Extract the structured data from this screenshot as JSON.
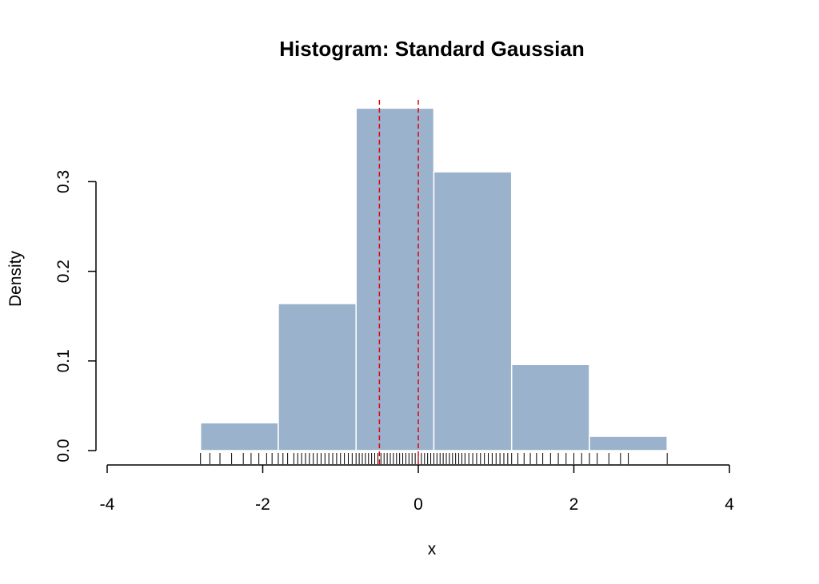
{
  "chart_data": {
    "type": "bar",
    "title": "Histogram: Standard Gaussian",
    "xlabel": "x",
    "ylabel": "Density",
    "xlim": [
      -4,
      4
    ],
    "ylim": [
      0,
      0.3
    ],
    "x_ticks": [
      -4,
      -2,
      0,
      2,
      4
    ],
    "x_tick_labels": [
      "-4",
      "-2",
      "0",
      "2",
      "4"
    ],
    "y_ticks": [
      0.0,
      0.1,
      0.2,
      0.3
    ],
    "y_tick_labels": [
      "0.0",
      "0.1",
      "0.2",
      "0.3"
    ],
    "bins": [
      {
        "x0": -2.8,
        "x1": -1.8,
        "density": 0.031
      },
      {
        "x0": -1.8,
        "x1": -0.8,
        "density": 0.164
      },
      {
        "x0": -0.8,
        "x1": 0.2,
        "density": 0.382
      },
      {
        "x0": 0.2,
        "x1": 1.2,
        "density": 0.311
      },
      {
        "x0": 1.2,
        "x1": 2.2,
        "density": 0.096
      },
      {
        "x0": 2.2,
        "x1": 3.2,
        "density": 0.016
      }
    ],
    "vlines": [
      -0.5,
      0
    ],
    "rug_ticks": [
      -2.8,
      -2.68,
      -2.55,
      -2.4,
      -2.25,
      -2.15,
      -2.05,
      -1.95,
      -1.88,
      -1.8,
      -1.74,
      -1.68,
      -1.6,
      -1.55,
      -1.5,
      -1.45,
      -1.4,
      -1.35,
      -1.3,
      -1.25,
      -1.2,
      -1.15,
      -1.1,
      -1.05,
      -1.0,
      -0.95,
      -0.9,
      -0.85,
      -0.8,
      -0.76,
      -0.72,
      -0.68,
      -0.64,
      -0.6,
      -0.56,
      -0.52,
      -0.48,
      -0.44,
      -0.4,
      -0.36,
      -0.32,
      -0.28,
      -0.24,
      -0.2,
      -0.16,
      -0.12,
      -0.08,
      -0.04,
      0.0,
      0.04,
      0.08,
      0.12,
      0.16,
      0.2,
      0.24,
      0.28,
      0.32,
      0.36,
      0.4,
      0.44,
      0.48,
      0.52,
      0.56,
      0.6,
      0.65,
      0.7,
      0.75,
      0.8,
      0.85,
      0.9,
      0.95,
      1.0,
      1.05,
      1.1,
      1.15,
      1.2,
      1.28,
      1.36,
      1.44,
      1.52,
      1.6,
      1.7,
      1.8,
      1.9,
      2.0,
      2.1,
      2.2,
      2.3,
      2.45,
      2.6,
      2.7,
      3.2
    ],
    "colors": {
      "bar_fill": "#9AB2CC",
      "bar_border": "#ffffff",
      "vline": "#E8000B",
      "axis": "#000000"
    },
    "grid": false,
    "legend": "none"
  }
}
